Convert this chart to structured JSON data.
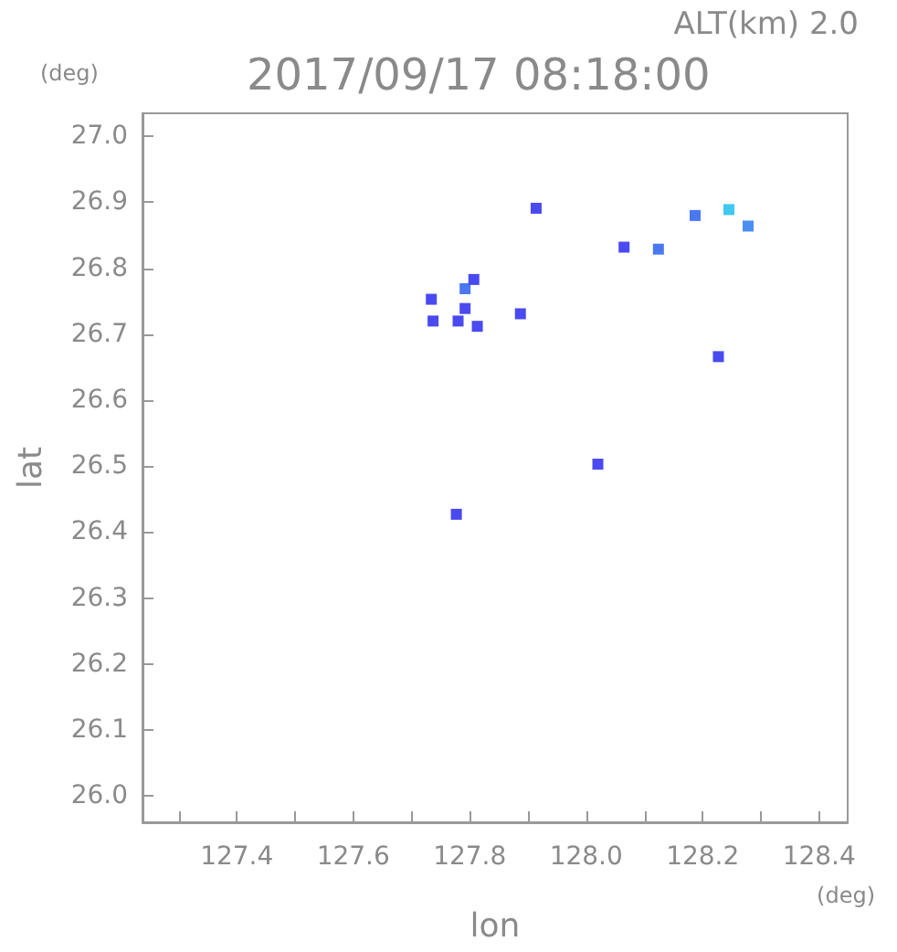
{
  "chart_data": {
    "type": "scatter",
    "title": "2017/09/17 08:18:00",
    "subtitle": "ALT(km) 2.0",
    "xlabel": "lon",
    "ylabel": "lat",
    "annotations": [
      "(deg)",
      "(deg)"
    ],
    "x": [
      127.914,
      128.065,
      128.124,
      128.187,
      128.245,
      128.278,
      128.227,
      127.792,
      127.807,
      127.734,
      127.792,
      127.737,
      127.78,
      127.813,
      127.887,
      128.02,
      127.777
    ],
    "values": [
      26.891,
      26.832,
      26.829,
      26.88,
      26.889,
      26.864,
      26.666,
      26.769,
      26.783,
      26.753,
      26.739,
      26.72,
      26.72,
      26.712,
      26.731,
      26.503,
      26.427
    ],
    "colors": [
      "#4a4af0",
      "#4a4af0",
      "#4a78f0",
      "#4a78f0",
      "#40c8f0",
      "#4a8ef0",
      "#4a4af0",
      "#4a78f0",
      "#4a4af0",
      "#4a4af0",
      "#4a4af0",
      "#4a4af0",
      "#4a4af0",
      "#4a4af0",
      "#4a4af0",
      "#4a4af0",
      "#4a4af0"
    ],
    "xlim": [
      127.238,
      128.449
    ],
    "ylim": [
      25.96,
      27.035
    ],
    "xticks": [
      {
        "value": 127.3,
        "label": null
      },
      127.4,
      {
        "value": 127.5,
        "label": null
      },
      127.6,
      {
        "value": 127.7,
        "label": null
      },
      127.8,
      {
        "value": 127.9,
        "label": null
      },
      {
        "value": 128,
        "label": "128.0"
      },
      {
        "value": 128.1,
        "label": null
      },
      128.2,
      {
        "value": 128.3,
        "label": null
      },
      128.4
    ],
    "yticks": [
      {
        "value": 26,
        "label": "26.0"
      },
      26.1,
      26.2,
      26.3,
      26.4,
      26.5,
      26.6,
      26.7,
      26.8,
      26.9,
      {
        "value": 27,
        "label": "27.0"
      }
    ],
    "grid": false,
    "marker": "square"
  }
}
